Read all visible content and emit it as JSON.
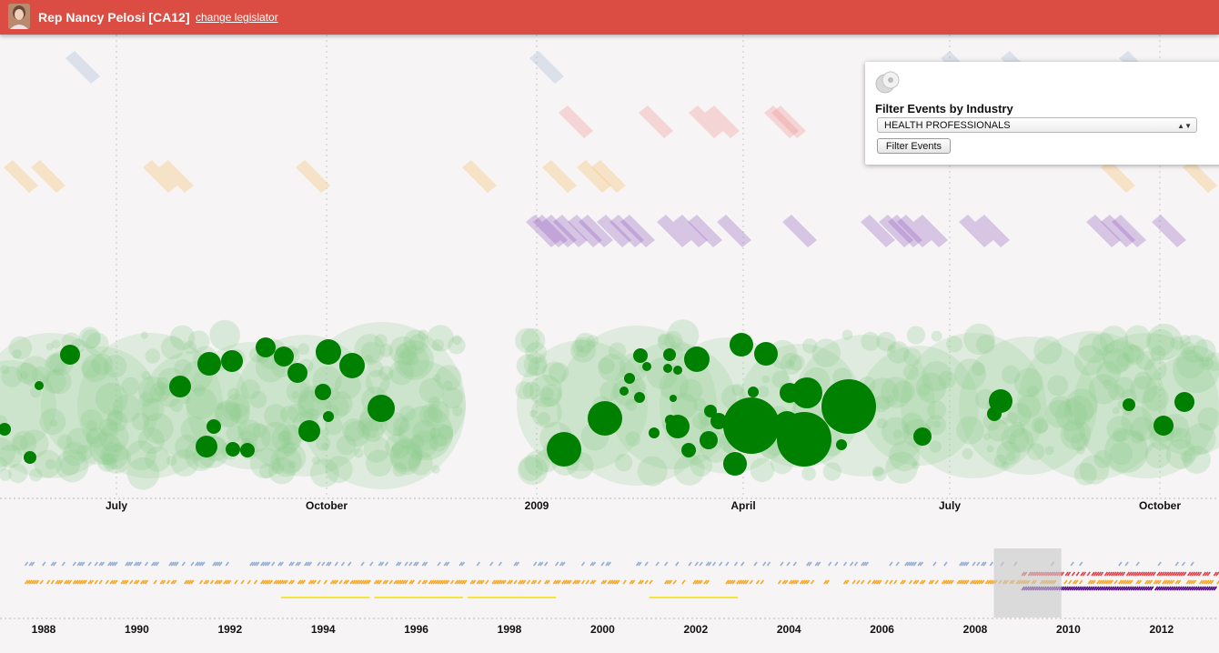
{
  "header": {
    "legislator_name": "Rep Nancy Pelosi [CA12]",
    "change_link": "change legislator",
    "background_color": "#db4c42"
  },
  "filter_panel": {
    "icon": "gear-icon",
    "title": "Filter Events by Industry",
    "selected_industry": "HEALTH PROFESSIONALS",
    "button_label": "Filter Events"
  },
  "chart_data": [
    {
      "type": "scatter",
      "name": "detail-timeline",
      "x_tick_labels": [
        "July",
        "October",
        "2009",
        "April",
        "July",
        "October"
      ],
      "grid": "dotted vertical",
      "series_colors": {
        "blue_events": "#9bb4d4",
        "red_events": "#f08a8a",
        "orange_events": "#f5b85a",
        "purple_events": "#8e5bbd",
        "contributions_highlighted": "#008000",
        "contributions_other": "#8fce8f"
      },
      "contribution_clusters": 2,
      "highlighted_contributions": 46
    },
    {
      "type": "scatter",
      "name": "overview-timeline",
      "x_tick_labels": [
        "1988",
        "1990",
        "1992",
        "1994",
        "1996",
        "1998",
        "2000",
        "2002",
        "2004",
        "2006",
        "2008",
        "2010",
        "2012"
      ],
      "x_range": [
        1987.3,
        2013.6
      ],
      "brush_range": [
        2008.4,
        2009.85
      ],
      "series": [
        {
          "color": "#7a9ccc",
          "span": [
            1987.6,
            2013.5
          ]
        },
        {
          "color": "#e0404a",
          "span": [
            2009.0,
            2013.5
          ]
        },
        {
          "color": "#f5a623",
          "span": [
            1987.6,
            2013.5
          ]
        },
        {
          "color": "#4b0082",
          "span": [
            2009.0,
            2013.5
          ]
        }
      ],
      "segments": [
        [
          1993.1,
          1995.0
        ],
        [
          1995.1,
          1997.0
        ],
        [
          1997.1,
          1999.0
        ],
        [
          2001.0,
          2002.9
        ]
      ],
      "segment_color": "#f5e53a"
    }
  ]
}
